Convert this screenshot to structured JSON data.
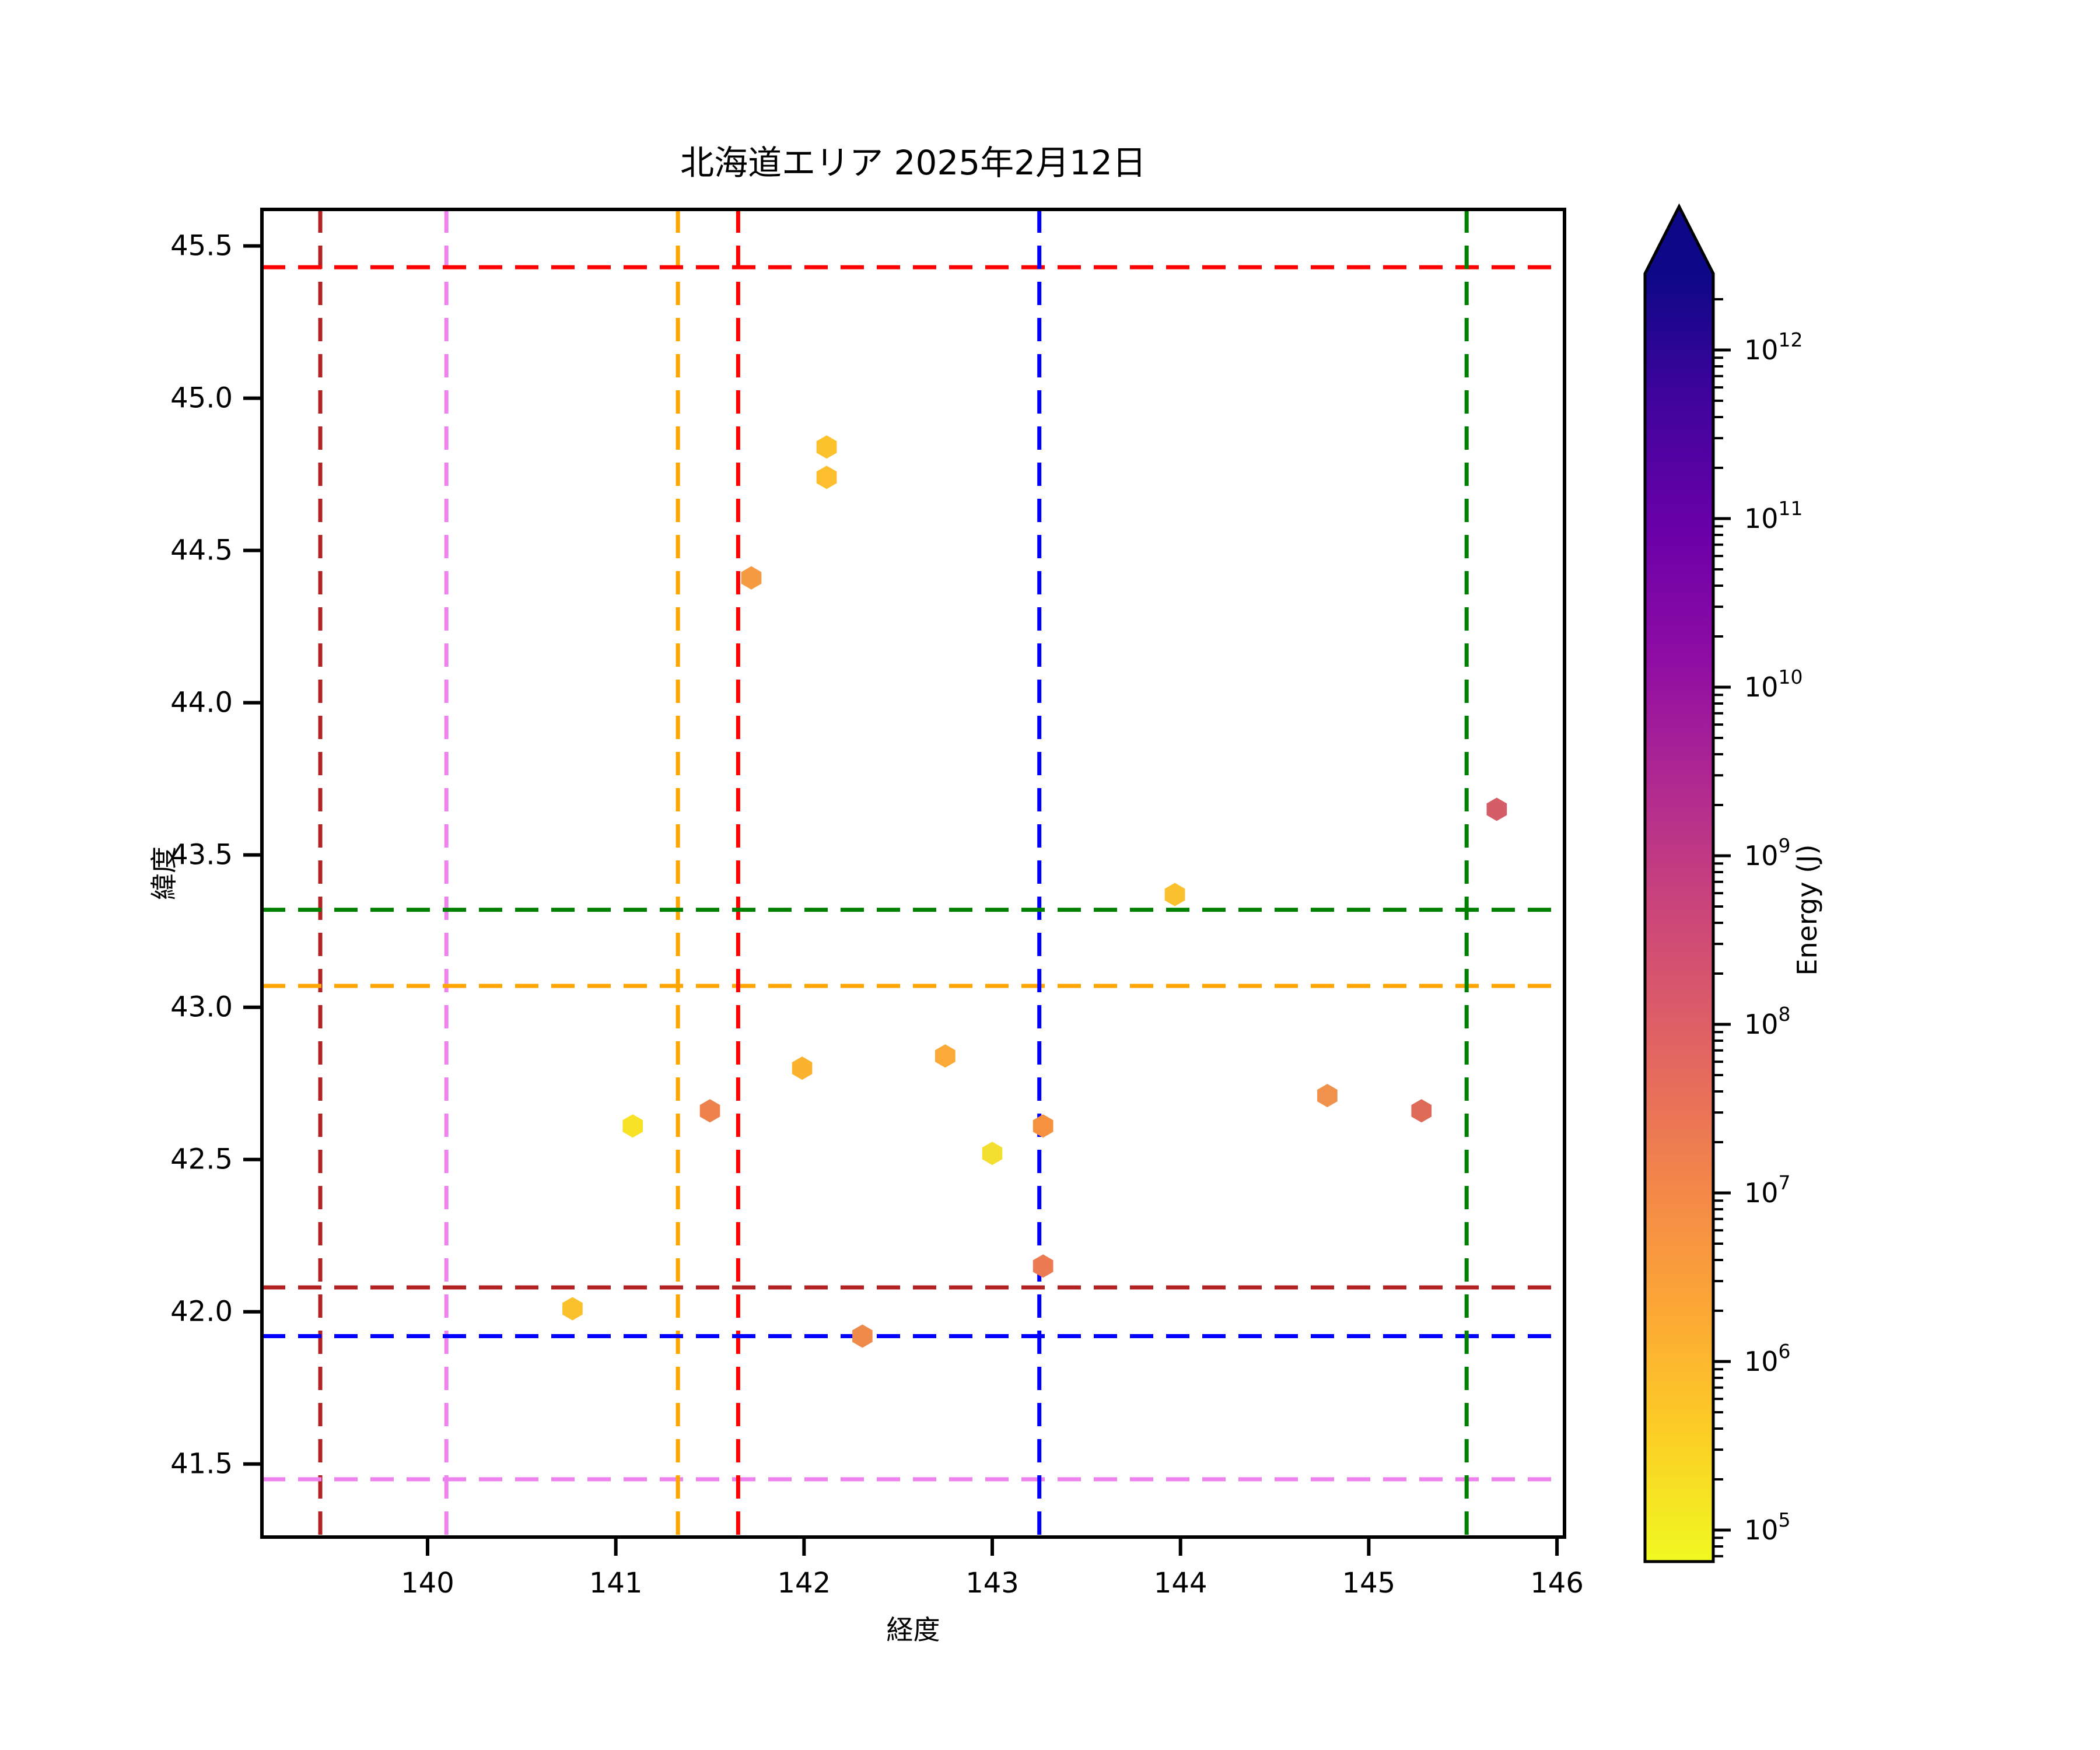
{
  "chart_data": {
    "type": "scatter",
    "title": "北海道エリア 2025年2月12日",
    "xlabel": "経度",
    "ylabel": "緯度",
    "xlim": [
      139.12,
      146.04
    ],
    "ylim": [
      41.26,
      45.62
    ],
    "xticks": [
      "140",
      "141",
      "142",
      "143",
      "144",
      "145",
      "146"
    ],
    "yticks": [
      "45.5",
      "45.0",
      "44.5",
      "44.0",
      "43.5",
      "43.0",
      "42.5",
      "42.0",
      "41.5"
    ],
    "grid": false,
    "marker": "hexagon",
    "points": [
      {
        "lon": 142.12,
        "lat": 44.84,
        "color": "#fcc22c",
        "energy_j_approx": 600000.0
      },
      {
        "lon": 142.12,
        "lat": 44.74,
        "color": "#fcbe2d",
        "energy_j_approx": 700000.0
      },
      {
        "lon": 141.72,
        "lat": 44.41,
        "color": "#f69a42",
        "energy_j_approx": 3500000.0
      },
      {
        "lon": 145.68,
        "lat": 43.65,
        "color": "#d45d68",
        "energy_j_approx": 130000000.0
      },
      {
        "lon": 143.97,
        "lat": 43.37,
        "color": "#fbc02d",
        "energy_j_approx": 650000.0
      },
      {
        "lon": 141.99,
        "lat": 42.8,
        "color": "#fbb32f",
        "energy_j_approx": 1100000.0
      },
      {
        "lon": 142.75,
        "lat": 42.84,
        "color": "#fba937",
        "energy_j_approx": 1800000.0
      },
      {
        "lon": 141.09,
        "lat": 42.61,
        "color": "#f7e225",
        "energy_j_approx": 200000.0
      },
      {
        "lon": 141.5,
        "lat": 42.66,
        "color": "#ed824d",
        "energy_j_approx": 11000000.0
      },
      {
        "lon": 143.0,
        "lat": 42.52,
        "color": "#f3df30",
        "energy_j_approx": 250000.0
      },
      {
        "lon": 143.27,
        "lat": 42.61,
        "color": "#f5913f",
        "energy_j_approx": 4500000.0
      },
      {
        "lon": 144.78,
        "lat": 42.71,
        "color": "#f0924c",
        "energy_j_approx": 6000000.0
      },
      {
        "lon": 145.28,
        "lat": 42.66,
        "color": "#dd6b58",
        "energy_j_approx": 45000000.0
      },
      {
        "lon": 143.27,
        "lat": 42.15,
        "color": "#ec7b54",
        "energy_j_approx": 17000000.0
      },
      {
        "lon": 140.77,
        "lat": 42.01,
        "color": "#fbc12d",
        "energy_j_approx": 650000.0
      },
      {
        "lon": 142.31,
        "lat": 41.92,
        "color": "#ee8a4a",
        "energy_j_approx": 12000000.0
      }
    ],
    "ref_lines": [
      {
        "name": "darkred",
        "color": "#b22222",
        "lon": 139.43,
        "lat": 42.08
      },
      {
        "name": "violet",
        "color": "#ee82ee",
        "lon": 140.1,
        "lat": 41.45
      },
      {
        "name": "orange",
        "color": "#ffa500",
        "lon": 141.33,
        "lat": 43.07
      },
      {
        "name": "red",
        "color": "#ff0000",
        "lon": 141.65,
        "lat": 45.43
      },
      {
        "name": "blue",
        "color": "#0000ff",
        "lon": 143.25,
        "lat": 41.92
      },
      {
        "name": "green",
        "color": "#008000",
        "lon": 145.52,
        "lat": 43.32
      }
    ],
    "colorbar": {
      "label": "Energy (J)",
      "scale": "log",
      "colormap": "plasma_r",
      "extend": "max",
      "tick_exponents": [
        5,
        6,
        7,
        8,
        9,
        10,
        11,
        12
      ],
      "range_exponents": [
        4.81,
        12.45
      ],
      "tick_label_base": "10",
      "gradient_top_to_bottom": [
        "#0d0887",
        "#41049d",
        "#6a00a8",
        "#8f0da4",
        "#b12a90",
        "#cc4778",
        "#e16462",
        "#f2844b",
        "#fca636",
        "#fcce25",
        "#f0f921"
      ]
    }
  }
}
